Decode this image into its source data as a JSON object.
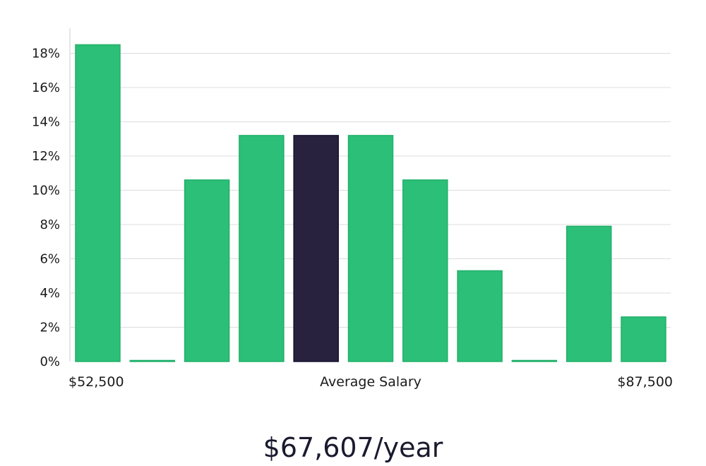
{
  "chart_data": {
    "type": "bar",
    "values": [
      18.5,
      0,
      10.6,
      13.2,
      13.2,
      13.2,
      10.6,
      5.3,
      0,
      7.9,
      2.6
    ],
    "highlight_index": 4,
    "ylim": [
      0,
      19
    ],
    "yticks": [
      0,
      2,
      4,
      6,
      8,
      10,
      12,
      14,
      16,
      18
    ],
    "ytick_suffix": "%",
    "x_start_label": "$52,500",
    "xlabel": "Average Salary",
    "x_end_label": "$87,500",
    "grid": true,
    "colors": {
      "bar": "#2bbf77",
      "bar_edge": "#22b06b",
      "highlight": "#28223f",
      "highlight_edge": "#151030",
      "grid": "#dcdcdc",
      "axis": "#cfcfcf"
    }
  },
  "summary": {
    "salary_text": "$67,607/year"
  }
}
